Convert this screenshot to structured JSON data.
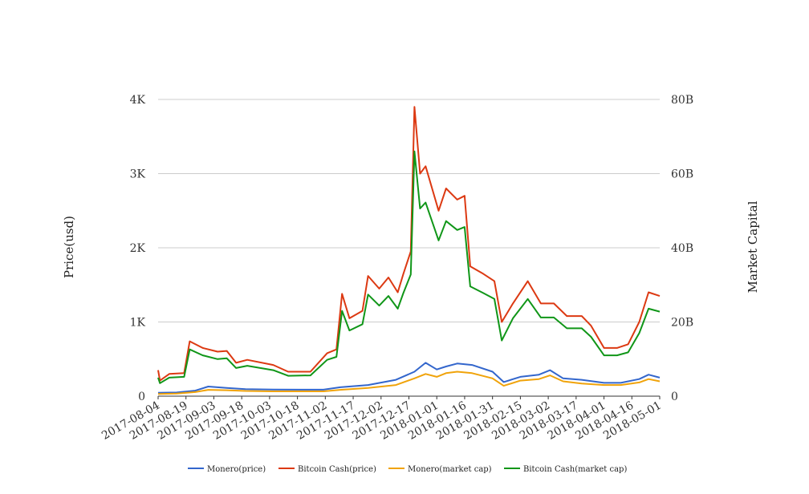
{
  "chart_data": {
    "type": "line",
    "x_ticks": [
      "2017-08-04",
      "2017-08-19",
      "2017-09-03",
      "2017-09-18",
      "2017-10-03",
      "2017-10-18",
      "2017-11-02",
      "2017-11-17",
      "2017-12-02",
      "2017-12-17",
      "2018-01-01",
      "2018-01-16",
      "2018-01-31",
      "2018-02-15",
      "2018-03-02",
      "2018-03-17",
      "2018-04-01",
      "2018-04-16",
      "2018-05-01"
    ],
    "x_range": [
      "2017-08-04",
      "2018-05-01"
    ],
    "y_left": {
      "label": "Price(usd)",
      "ticks": [
        "0",
        "1K",
        "2K",
        "3K",
        "4K"
      ],
      "range": [
        0,
        4000
      ]
    },
    "y_right": {
      "label": "Market Capital",
      "ticks": [
        "0",
        "20B",
        "40B",
        "60B",
        "80B"
      ],
      "range": [
        0,
        80000000000
      ]
    },
    "grid": true,
    "legend_position": "bottom",
    "series": [
      {
        "name": "Monero(price)",
        "axis": "left",
        "color": "#3366cc",
        "points": [
          [
            "2017-08-04",
            45
          ],
          [
            "2017-08-14",
            50
          ],
          [
            "2017-08-24",
            75
          ],
          [
            "2017-08-31",
            130
          ],
          [
            "2017-09-10",
            110
          ],
          [
            "2017-09-20",
            95
          ],
          [
            "2017-10-05",
            90
          ],
          [
            "2017-10-20",
            88
          ],
          [
            "2017-11-01",
            88
          ],
          [
            "2017-11-10",
            120
          ],
          [
            "2017-11-25",
            150
          ],
          [
            "2017-12-10",
            220
          ],
          [
            "2017-12-20",
            330
          ],
          [
            "2017-12-26",
            450
          ],
          [
            "2018-01-01",
            360
          ],
          [
            "2018-01-06",
            400
          ],
          [
            "2018-01-12",
            440
          ],
          [
            "2018-01-20",
            420
          ],
          [
            "2018-01-31",
            330
          ],
          [
            "2018-02-06",
            190
          ],
          [
            "2018-02-15",
            260
          ],
          [
            "2018-02-25",
            290
          ],
          [
            "2018-03-03",
            350
          ],
          [
            "2018-03-10",
            240
          ],
          [
            "2018-03-20",
            220
          ],
          [
            "2018-04-01",
            180
          ],
          [
            "2018-04-10",
            180
          ],
          [
            "2018-04-20",
            230
          ],
          [
            "2018-04-25",
            290
          ],
          [
            "2018-05-01",
            250
          ]
        ]
      },
      {
        "name": "Bitcoin Cash(price)",
        "axis": "left",
        "color": "#dc3912",
        "points": [
          [
            "2017-08-04",
            350
          ],
          [
            "2017-08-05",
            210
          ],
          [
            "2017-08-10",
            300
          ],
          [
            "2017-08-18",
            310
          ],
          [
            "2017-08-21",
            740
          ],
          [
            "2017-08-28",
            650
          ],
          [
            "2017-09-05",
            600
          ],
          [
            "2017-09-10",
            610
          ],
          [
            "2017-09-15",
            450
          ],
          [
            "2017-09-21",
            490
          ],
          [
            "2017-10-05",
            420
          ],
          [
            "2017-10-13",
            330
          ],
          [
            "2017-10-25",
            330
          ],
          [
            "2017-11-03",
            580
          ],
          [
            "2017-11-08",
            630
          ],
          [
            "2017-11-11",
            1380
          ],
          [
            "2017-11-15",
            1050
          ],
          [
            "2017-11-22",
            1150
          ],
          [
            "2017-11-25",
            1620
          ],
          [
            "2017-12-01",
            1450
          ],
          [
            "2017-12-06",
            1600
          ],
          [
            "2017-12-11",
            1400
          ],
          [
            "2017-12-14",
            1650
          ],
          [
            "2017-12-18",
            1950
          ],
          [
            "2017-12-20",
            3900
          ],
          [
            "2017-12-23",
            3000
          ],
          [
            "2017-12-26",
            3100
          ],
          [
            "2018-01-02",
            2500
          ],
          [
            "2018-01-06",
            2800
          ],
          [
            "2018-01-12",
            2650
          ],
          [
            "2018-01-16",
            2700
          ],
          [
            "2018-01-19",
            1750
          ],
          [
            "2018-01-26",
            1650
          ],
          [
            "2018-02-01",
            1550
          ],
          [
            "2018-02-05",
            1000
          ],
          [
            "2018-02-11",
            1250
          ],
          [
            "2018-02-19",
            1550
          ],
          [
            "2018-02-26",
            1250
          ],
          [
            "2018-03-05",
            1250
          ],
          [
            "2018-03-12",
            1080
          ],
          [
            "2018-03-20",
            1080
          ],
          [
            "2018-03-25",
            950
          ],
          [
            "2018-04-01",
            650
          ],
          [
            "2018-04-08",
            650
          ],
          [
            "2018-04-14",
            700
          ],
          [
            "2018-04-20",
            1000
          ],
          [
            "2018-04-25",
            1400
          ],
          [
            "2018-05-01",
            1350
          ]
        ]
      },
      {
        "name": "Monero(market cap)",
        "axis": "right",
        "color": "#f0a30a",
        "points": [
          [
            "2017-08-04",
            600000000
          ],
          [
            "2017-08-14",
            700000000
          ],
          [
            "2017-08-24",
            1100000000
          ],
          [
            "2017-08-31",
            1700000000
          ],
          [
            "2017-09-10",
            1600000000
          ],
          [
            "2017-09-20",
            1400000000
          ],
          [
            "2017-10-05",
            1300000000
          ],
          [
            "2017-10-20",
            1300000000
          ],
          [
            "2017-11-01",
            1300000000
          ],
          [
            "2017-11-10",
            1700000000
          ],
          [
            "2017-11-25",
            2200000000
          ],
          [
            "2017-12-10",
            3000000000
          ],
          [
            "2017-12-20",
            4800000000
          ],
          [
            "2017-12-26",
            6000000000
          ],
          [
            "2018-01-01",
            5200000000
          ],
          [
            "2018-01-06",
            6200000000
          ],
          [
            "2018-01-12",
            6600000000
          ],
          [
            "2018-01-20",
            6200000000
          ],
          [
            "2018-01-31",
            4800000000
          ],
          [
            "2018-02-06",
            2800000000
          ],
          [
            "2018-02-15",
            4200000000
          ],
          [
            "2018-02-25",
            4600000000
          ],
          [
            "2018-03-03",
            5600000000
          ],
          [
            "2018-03-10",
            4000000000
          ],
          [
            "2018-03-20",
            3400000000
          ],
          [
            "2018-04-01",
            3000000000
          ],
          [
            "2018-04-10",
            3000000000
          ],
          [
            "2018-04-20",
            3700000000
          ],
          [
            "2018-04-25",
            4600000000
          ],
          [
            "2018-05-01",
            4000000000
          ]
        ]
      },
      {
        "name": "Bitcoin Cash(market cap)",
        "axis": "right",
        "color": "#109618",
        "points": [
          [
            "2017-08-04",
            5000000000
          ],
          [
            "2017-08-05",
            3500000000
          ],
          [
            "2017-08-10",
            5000000000
          ],
          [
            "2017-08-18",
            5200000000
          ],
          [
            "2017-08-21",
            12600000000
          ],
          [
            "2017-08-28",
            11000000000
          ],
          [
            "2017-09-05",
            10000000000
          ],
          [
            "2017-09-10",
            10200000000
          ],
          [
            "2017-09-15",
            7600000000
          ],
          [
            "2017-09-21",
            8200000000
          ],
          [
            "2017-10-05",
            7000000000
          ],
          [
            "2017-10-13",
            5500000000
          ],
          [
            "2017-10-25",
            5600000000
          ],
          [
            "2017-11-03",
            9800000000
          ],
          [
            "2017-11-08",
            10600000000
          ],
          [
            "2017-11-11",
            23000000000
          ],
          [
            "2017-11-15",
            17700000000
          ],
          [
            "2017-11-22",
            19400000000
          ],
          [
            "2017-11-25",
            27400000000
          ],
          [
            "2017-12-01",
            24400000000
          ],
          [
            "2017-12-06",
            27000000000
          ],
          [
            "2017-12-11",
            23600000000
          ],
          [
            "2017-12-14",
            27800000000
          ],
          [
            "2017-12-18",
            32800000000
          ],
          [
            "2017-12-20",
            66000000000
          ],
          [
            "2017-12-23",
            50600000000
          ],
          [
            "2017-12-26",
            52200000000
          ],
          [
            "2018-01-02",
            42000000000
          ],
          [
            "2018-01-06",
            47200000000
          ],
          [
            "2018-01-12",
            44800000000
          ],
          [
            "2018-01-16",
            45600000000
          ],
          [
            "2018-01-19",
            29600000000
          ],
          [
            "2018-01-26",
            27800000000
          ],
          [
            "2018-02-01",
            26200000000
          ],
          [
            "2018-02-05",
            15000000000
          ],
          [
            "2018-02-11",
            21000000000
          ],
          [
            "2018-02-19",
            26200000000
          ],
          [
            "2018-02-26",
            21200000000
          ],
          [
            "2018-03-05",
            21200000000
          ],
          [
            "2018-03-12",
            18300000000
          ],
          [
            "2018-03-20",
            18300000000
          ],
          [
            "2018-03-25",
            16000000000
          ],
          [
            "2018-04-01",
            11000000000
          ],
          [
            "2018-04-08",
            11000000000
          ],
          [
            "2018-04-14",
            11800000000
          ],
          [
            "2018-04-20",
            17000000000
          ],
          [
            "2018-04-25",
            23600000000
          ],
          [
            "2018-05-01",
            22800000000
          ]
        ]
      }
    ]
  }
}
